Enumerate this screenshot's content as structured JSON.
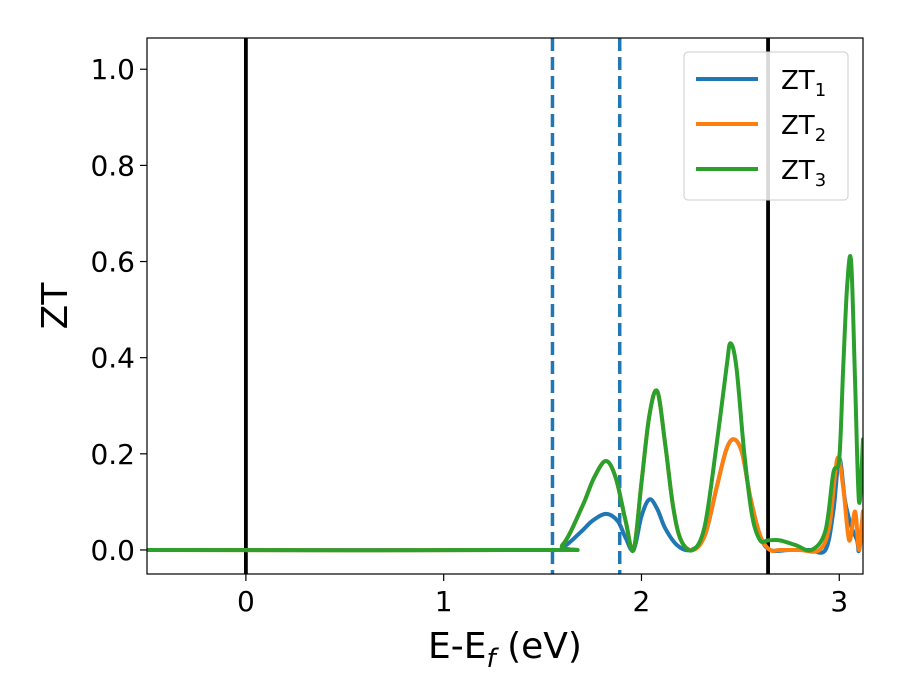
{
  "chart_data": {
    "type": "line",
    "xlabel": "E-E",
    "xlabel_sub": "f",
    "xlabel_unit": " (eV)",
    "ylabel": "ZT",
    "xlim": [
      -0.5,
      3.12
    ],
    "ylim": [
      -0.05,
      1.065
    ],
    "xticks": [
      0,
      1,
      2,
      3
    ],
    "xtick_labels": [
      "0",
      "1",
      "2",
      "3"
    ],
    "yticks": [
      0.0,
      0.2,
      0.4,
      0.6,
      0.8,
      1.0
    ],
    "ytick_labels": [
      "0.0",
      "0.2",
      "0.4",
      "0.6",
      "0.8",
      "1.0"
    ],
    "grid": false,
    "legend_position": "top-right",
    "vlines": [
      {
        "x": 0.0,
        "style": "solid",
        "color": "#000000"
      },
      {
        "x": 1.55,
        "style": "dashed",
        "color": "#1f77b4"
      },
      {
        "x": 1.89,
        "style": "dashed",
        "color": "#1f77b4"
      },
      {
        "x": 2.64,
        "style": "solid",
        "color": "#000000"
      }
    ],
    "series": [
      {
        "name": "ZT",
        "sub": "1",
        "color": "#1f77b4",
        "x": [
          -0.5,
          1.5,
          1.6,
          1.7,
          1.75,
          1.82,
          1.88,
          1.92,
          1.96,
          2.0,
          2.04,
          2.08,
          2.12,
          2.18,
          2.25,
          2.32,
          2.38,
          2.43,
          2.47,
          2.51,
          2.55,
          2.6,
          2.65,
          2.75,
          2.85,
          2.93,
          2.97,
          3.0,
          3.03,
          3.06,
          3.09,
          3.1,
          3.12
        ],
        "y": [
          0.0,
          0.0,
          0.005,
          0.04,
          0.06,
          0.075,
          0.06,
          0.025,
          0.0,
          0.07,
          0.105,
          0.085,
          0.045,
          0.01,
          0.0,
          0.03,
          0.13,
          0.21,
          0.23,
          0.2,
          0.11,
          0.03,
          0.0,
          0.0,
          0.0,
          0.0,
          0.08,
          0.19,
          0.1,
          0.05,
          0.02,
          0.0,
          0.08
        ]
      },
      {
        "name": "ZT",
        "sub": "2",
        "color": "#ff7f0e",
        "x": [
          -0.5,
          1.5,
          1.6,
          1.7,
          1.76,
          1.82,
          1.87,
          1.92,
          1.96,
          2.0,
          2.04,
          2.08,
          2.12,
          2.16,
          2.2,
          2.26,
          2.32,
          2.38,
          2.43,
          2.47,
          2.51,
          2.55,
          2.6,
          2.65,
          2.7,
          2.8,
          2.9,
          2.95,
          2.99,
          3.02,
          3.05,
          3.08,
          3.1,
          3.12
        ],
        "y": [
          0.0,
          0.0,
          0.01,
          0.09,
          0.15,
          0.185,
          0.15,
          0.06,
          0.0,
          0.14,
          0.28,
          0.33,
          0.22,
          0.09,
          0.02,
          0.0,
          0.03,
          0.13,
          0.21,
          0.23,
          0.2,
          0.11,
          0.03,
          0.0,
          0.0,
          0.0,
          0.0,
          0.05,
          0.19,
          0.13,
          0.02,
          0.08,
          0.0,
          0.08
        ]
      },
      {
        "name": "ZT",
        "sub": "3",
        "color": "#2ca02c",
        "x": [
          -0.5,
          1.5,
          1.6,
          1.7,
          1.76,
          1.82,
          1.87,
          1.92,
          1.96,
          2.0,
          2.04,
          2.08,
          2.12,
          2.16,
          2.2,
          2.26,
          2.32,
          2.38,
          2.43,
          2.45,
          2.48,
          2.52,
          2.56,
          2.6,
          2.64,
          2.7,
          2.78,
          2.86,
          2.93,
          2.97,
          3.0,
          3.02,
          3.04,
          3.06,
          3.08,
          3.1,
          3.12
        ],
        "y": [
          0.0,
          0.0,
          0.01,
          0.09,
          0.15,
          0.185,
          0.15,
          0.06,
          0.0,
          0.14,
          0.28,
          0.33,
          0.22,
          0.09,
          0.02,
          0.0,
          0.05,
          0.22,
          0.38,
          0.43,
          0.38,
          0.2,
          0.07,
          0.02,
          0.02,
          0.02,
          0.01,
          0.0,
          0.04,
          0.16,
          0.19,
          0.38,
          0.55,
          0.6,
          0.35,
          0.1,
          0.23
        ]
      }
    ]
  }
}
